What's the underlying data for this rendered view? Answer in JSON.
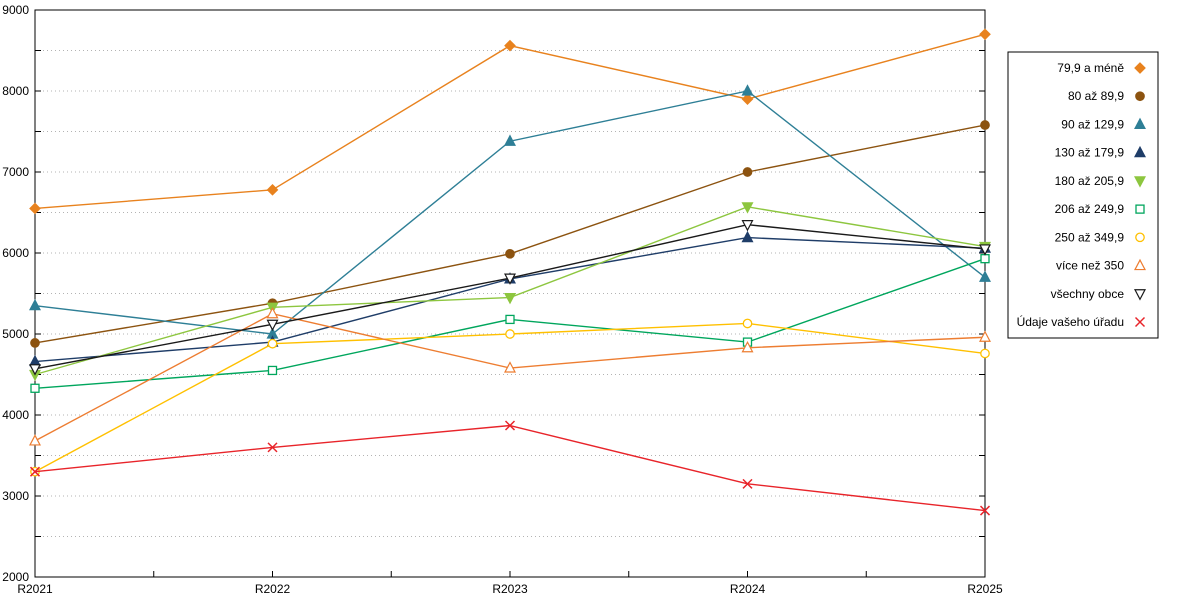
{
  "chart_data": {
    "type": "line",
    "categories": [
      "R2021",
      "R2022",
      "R2023",
      "R2024",
      "R2025"
    ],
    "ylim": [
      2000,
      9000
    ],
    "ytick_minor_step": 500,
    "ytick_label_step": 1000,
    "grid": "horizontal-dotted",
    "legend_position": "right-outside-box",
    "series": [
      {
        "name": "79,9 a méně",
        "color": "#E8821E",
        "marker": "diamond",
        "fill": "filled",
        "values": [
          6550,
          6780,
          8560,
          7900,
          8700
        ]
      },
      {
        "name": "80 až 89,9",
        "color": "#8C5310",
        "marker": "circle",
        "fill": "filled",
        "values": [
          4890,
          5380,
          5990,
          7000,
          7580
        ]
      },
      {
        "name": "90 až 129,9",
        "color": "#2E7F96",
        "marker": "triangle-up",
        "fill": "filled",
        "values": [
          5350,
          5000,
          7380,
          8000,
          5700
        ]
      },
      {
        "name": "130 až 179,9",
        "color": "#1F3D68",
        "marker": "triangle-up",
        "fill": "filled",
        "values": [
          4660,
          4900,
          5680,
          6190,
          6060
        ]
      },
      {
        "name": "180 až 205,9",
        "color": "#8DC63F",
        "marker": "triangle-down",
        "fill": "filled",
        "values": [
          4500,
          5330,
          5450,
          6570,
          6080
        ]
      },
      {
        "name": "206 až 249,9",
        "color": "#00A65D",
        "marker": "square",
        "fill": "open",
        "values": [
          4330,
          4550,
          5180,
          4900,
          5930
        ]
      },
      {
        "name": "250 až 349,9",
        "color": "#FFC000",
        "marker": "circle",
        "fill": "open",
        "values": [
          3300,
          4880,
          5000,
          5130,
          4760
        ]
      },
      {
        "name": "více než 350",
        "color": "#ED7D31",
        "marker": "triangle-up",
        "fill": "open",
        "values": [
          3680,
          5250,
          4580,
          4830,
          4960
        ]
      },
      {
        "name": "všechny obce",
        "color": "#1A1A1A",
        "marker": "triangle-down",
        "fill": "open",
        "values": [
          4570,
          5120,
          5690,
          6350,
          6050
        ]
      },
      {
        "name": "Údaje vašeho úřadu",
        "color": "#E8242A",
        "marker": "x",
        "fill": "open",
        "values": [
          3300,
          3600,
          3870,
          3150,
          2820
        ]
      }
    ]
  }
}
